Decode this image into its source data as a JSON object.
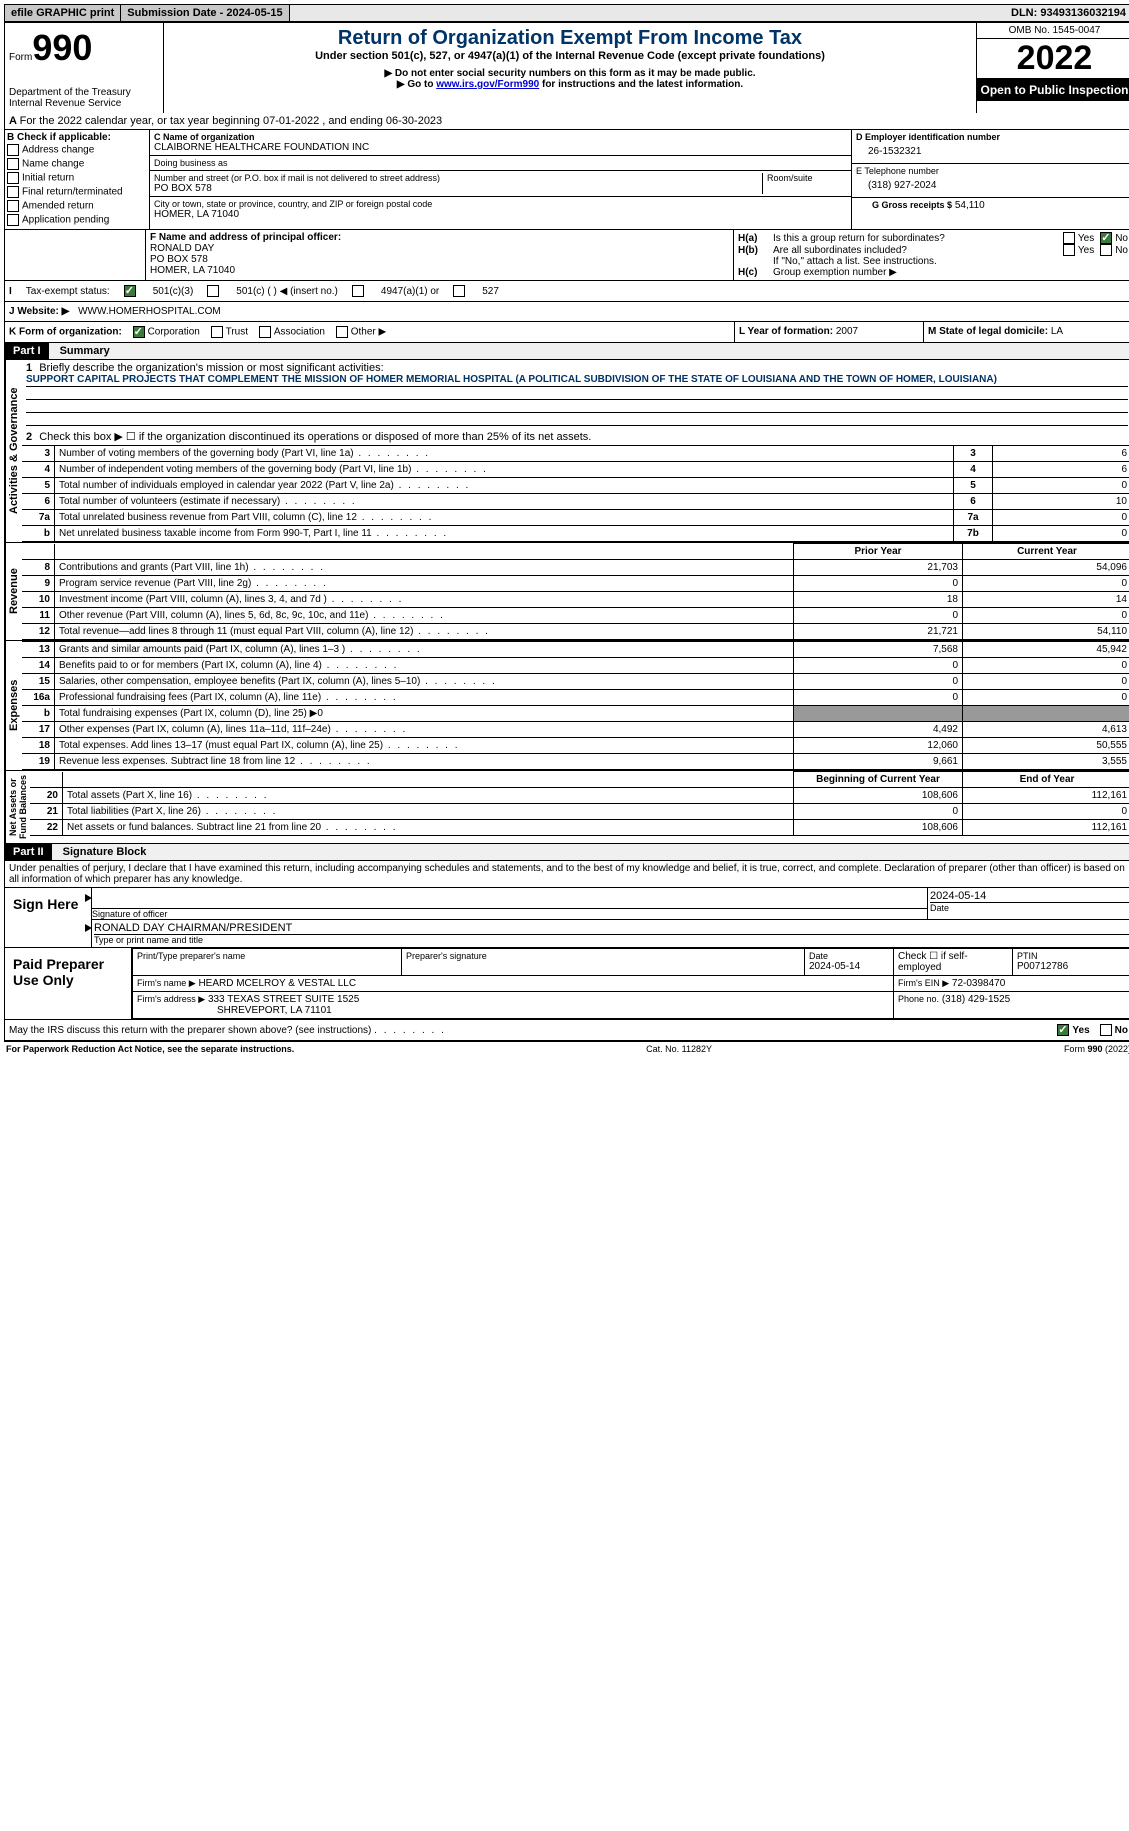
{
  "topbar": {
    "efile": "efile GRAPHIC print",
    "subdate_label": "Submission Date - ",
    "subdate": "2024-05-15",
    "dln_label": "DLN: ",
    "dln": "93493136032194"
  },
  "header": {
    "form_label": "Form",
    "form_no": "990",
    "dept": "Department of the Treasury",
    "irs": "Internal Revenue Service",
    "title": "Return of Organization Exempt From Income Tax",
    "subtitle": "Under section 501(c), 527, or 4947(a)(1) of the Internal Revenue Code (except private foundations)",
    "note1": "▶ Do not enter social security numbers on this form as it may be made public.",
    "note2_pre": "▶ Go to ",
    "note2_link": "www.irs.gov/Form990",
    "note2_post": " for instructions and the latest information.",
    "omb": "OMB No. 1545-0047",
    "year": "2022",
    "open": "Open to Public Inspection"
  },
  "periodA": "For the 2022 calendar year, or tax year beginning 07-01-2022     , and ending 06-30-2023",
  "checkB": {
    "label": "B Check if applicable:",
    "items": [
      "Address change",
      "Name change",
      "Initial return",
      "Final return/terminated",
      "Amended return",
      "Application pending"
    ]
  },
  "blockC": {
    "name_label": "C Name of organization",
    "name": "CLAIBORNE HEALTHCARE FOUNDATION INC",
    "dba_label": "Doing business as",
    "street_label": "Number and street (or P.O. box if mail is not delivered to street address)",
    "room_label": "Room/suite",
    "street": "PO BOX 578",
    "city_label": "City or town, state or province, country, and ZIP or foreign postal code",
    "city": "HOMER, LA   71040"
  },
  "blockD": {
    "label": "D Employer identification number",
    "val": "26-1532321"
  },
  "blockE": {
    "label": "E Telephone number",
    "val": "(318) 927-2024"
  },
  "blockG": {
    "label": "G Gross receipts $",
    "val": "54,110"
  },
  "blockF": {
    "label": "F Name and address of principal officer:",
    "name": "RONALD DAY",
    "addr1": "PO BOX 578",
    "addr2": "HOMER, LA   71040"
  },
  "blockH": {
    "a": "Is this a group return for subordinates?",
    "b": "Are all subordinates included?",
    "b_note": "If \"No,\" attach a list. See instructions.",
    "c": "Group exemption number ▶",
    "yes": "Yes",
    "no": "No"
  },
  "taxI": {
    "label": "Tax-exempt status:",
    "opts": [
      "501(c)(3)",
      "501(c) (  ) ◀ (insert no.)",
      "4947(a)(1) or",
      "527"
    ]
  },
  "websiteJ": {
    "label": "Website: ▶",
    "val": "WWW.HOMERHOSPITAL.COM"
  },
  "formK": {
    "label": "K Form of organization:",
    "opts": [
      "Corporation",
      "Trust",
      "Association",
      "Other ▶"
    ]
  },
  "yearL": {
    "label": "L Year of formation:",
    "val": "2007"
  },
  "stateM": {
    "label": "M State of legal domicile:",
    "val": "LA"
  },
  "part1": {
    "header": "Part I",
    "title": "Summary",
    "l1_label": "Briefly describe the organization's mission or most significant activities:",
    "l1": "SUPPORT CAPITAL PROJECTS THAT COMPLEMENT THE MISSION OF HOMER MEMORIAL HOSPITAL (A POLITICAL SUBDIVISION OF THE STATE OF LOUISIANA AND THE TOWN OF HOMER, LOUISIANA)",
    "l2": "Check this box ▶ ☐ if the organization discontinued its operations or disposed of more than 25% of its net assets.",
    "rows_gov": [
      {
        "n": "3",
        "d": "Number of voting members of the governing body (Part VI, line 1a)",
        "box": "3",
        "v": "6"
      },
      {
        "n": "4",
        "d": "Number of independent voting members of the governing body (Part VI, line 1b)",
        "box": "4",
        "v": "6"
      },
      {
        "n": "5",
        "d": "Total number of individuals employed in calendar year 2022 (Part V, line 2a)",
        "box": "5",
        "v": "0"
      },
      {
        "n": "6",
        "d": "Total number of volunteers (estimate if necessary)",
        "box": "6",
        "v": "10"
      },
      {
        "n": "7a",
        "d": "Total unrelated business revenue from Part VIII, column (C), line 12",
        "box": "7a",
        "v": "0"
      },
      {
        "n": "b",
        "d": "Net unrelated business taxable income from Form 990-T, Part I, line 11",
        "box": "7b",
        "v": "0"
      }
    ],
    "col_prior": "Prior Year",
    "col_current": "Current Year",
    "rows_rev": [
      {
        "n": "8",
        "d": "Contributions and grants (Part VIII, line 1h)",
        "p": "21,703",
        "c": "54,096"
      },
      {
        "n": "9",
        "d": "Program service revenue (Part VIII, line 2g)",
        "p": "0",
        "c": "0"
      },
      {
        "n": "10",
        "d": "Investment income (Part VIII, column (A), lines 3, 4, and 7d )",
        "p": "18",
        "c": "14"
      },
      {
        "n": "11",
        "d": "Other revenue (Part VIII, column (A), lines 5, 6d, 8c, 9c, 10c, and 11e)",
        "p": "0",
        "c": "0"
      },
      {
        "n": "12",
        "d": "Total revenue—add lines 8 through 11 (must equal Part VIII, column (A), line 12)",
        "p": "21,721",
        "c": "54,110"
      }
    ],
    "rows_exp": [
      {
        "n": "13",
        "d": "Grants and similar amounts paid (Part IX, column (A), lines 1–3 )",
        "p": "7,568",
        "c": "45,942"
      },
      {
        "n": "14",
        "d": "Benefits paid to or for members (Part IX, column (A), line 4)",
        "p": "0",
        "c": "0"
      },
      {
        "n": "15",
        "d": "Salaries, other compensation, employee benefits (Part IX, column (A), lines 5–10)",
        "p": "0",
        "c": "0"
      },
      {
        "n": "16a",
        "d": "Professional fundraising fees (Part IX, column (A), line 11e)",
        "p": "0",
        "c": "0"
      },
      {
        "n": "b",
        "d": "Total fundraising expenses (Part IX, column (D), line 25) ▶0",
        "shade": true
      },
      {
        "n": "17",
        "d": "Other expenses (Part IX, column (A), lines 11a–11d, 11f–24e)",
        "p": "4,492",
        "c": "4,613"
      },
      {
        "n": "18",
        "d": "Total expenses. Add lines 13–17 (must equal Part IX, column (A), line 25)",
        "p": "12,060",
        "c": "50,555"
      },
      {
        "n": "19",
        "d": "Revenue less expenses. Subtract line 18 from line 12",
        "p": "9,661",
        "c": "3,555"
      }
    ],
    "col_begin": "Beginning of Current Year",
    "col_end": "End of Year",
    "rows_net": [
      {
        "n": "20",
        "d": "Total assets (Part X, line 16)",
        "p": "108,606",
        "c": "112,161"
      },
      {
        "n": "21",
        "d": "Total liabilities (Part X, line 26)",
        "p": "0",
        "c": "0"
      },
      {
        "n": "22",
        "d": "Net assets or fund balances. Subtract line 21 from line 20",
        "p": "108,606",
        "c": "112,161"
      }
    ],
    "side_gov": "Activities & Governance",
    "side_rev": "Revenue",
    "side_exp": "Expenses",
    "side_net": "Net Assets or\nFund Balances"
  },
  "part2": {
    "header": "Part II",
    "title": "Signature Block",
    "penalty": "Under penalties of perjury, I declare that I have examined this return, including accompanying schedules and statements, and to the best of my knowledge and belief, it is true, correct, and complete. Declaration of preparer (other than officer) is based on all information of which preparer has any knowledge.",
    "sign_here": "Sign Here",
    "sig_officer": "Signature of officer",
    "sig_date_label": "Date",
    "sig_date": "2024-05-14",
    "officer_name": "RONALD DAY CHAIRMAN/PRESIDENT",
    "typed_label": "Type or print name and title",
    "paid": "Paid Preparer Use Only",
    "prep_name_label": "Print/Type preparer's name",
    "prep_sig_label": "Preparer's signature",
    "prep_date_label": "Date",
    "prep_date": "2024-05-14",
    "check_self": "Check ☐ if self-employed",
    "ptin_label": "PTIN",
    "ptin": "P00712786",
    "firm_name_label": "Firm's name ▶",
    "firm_name": "HEARD MCELROY & VESTAL LLC",
    "firm_ein_label": "Firm's EIN ▶",
    "firm_ein": "72-0398470",
    "firm_addr_label": "Firm's address ▶",
    "firm_addr1": "333 TEXAS STREET SUITE 1525",
    "firm_addr2": "SHREVEPORT, LA  71101",
    "phone_label": "Phone no.",
    "phone": "(318) 429-1525",
    "discuss": "May the IRS discuss this return with the preparer shown above? (see instructions)"
  },
  "footer": {
    "pra": "For Paperwork Reduction Act Notice, see the separate instructions.",
    "cat": "Cat. No. 11282Y",
    "form": "Form 990 (2022)"
  }
}
